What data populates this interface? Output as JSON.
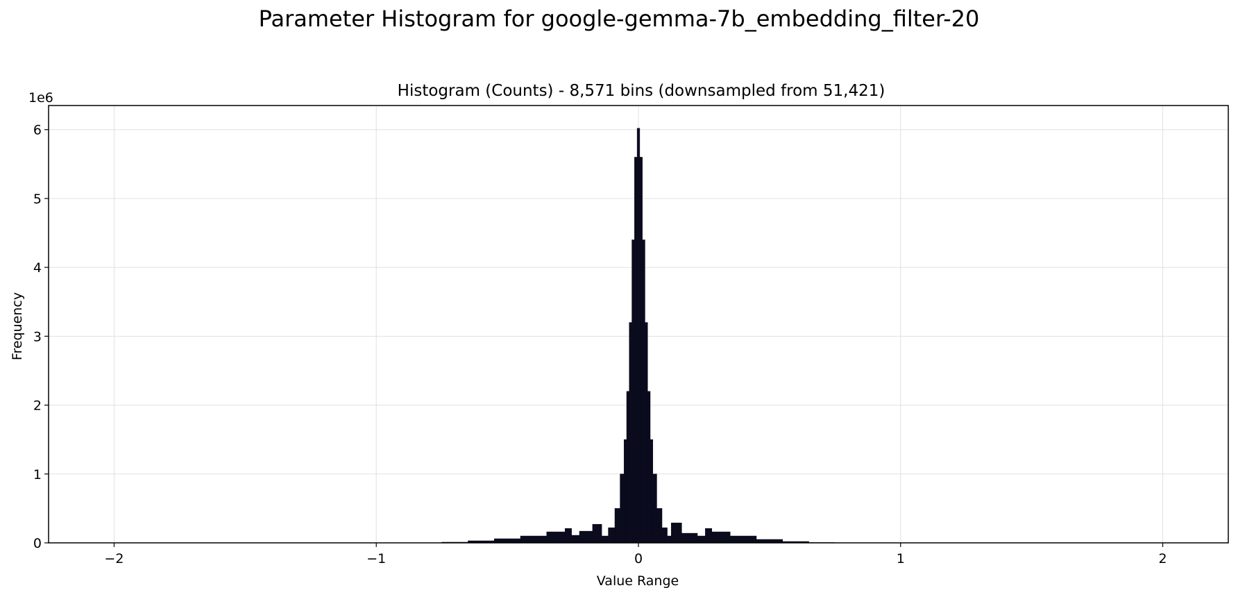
{
  "suptitle": "Parameter Histogram for google-gemma-7b_embedding_filter-20",
  "chart_data": {
    "type": "bar",
    "title": "Histogram (Counts) - 8,571 bins (downsampled from 51,421)",
    "xlabel": "Value Range",
    "ylabel": "Frequency",
    "y_offset_label": "1e6",
    "xlim": [
      -2.25,
      2.25
    ],
    "ylim": [
      0,
      6.35
    ],
    "y_scale_note": "values in millions (1e6)",
    "x_ticks": [
      -2,
      -1,
      0,
      1,
      2
    ],
    "x_tick_labels": [
      "−2",
      "−1",
      "0",
      "1",
      "2"
    ],
    "y_ticks": [
      0,
      1,
      2,
      3,
      4,
      5,
      6
    ],
    "y_tick_labels": [
      "0",
      "1",
      "2",
      "3",
      "4",
      "5",
      "6"
    ],
    "grid": true,
    "bar_color": "#0b0b1e",
    "x": [
      -0.8,
      -0.7,
      -0.6,
      -0.5,
      -0.4,
      -0.3,
      -0.26,
      -0.25,
      -0.2,
      -0.15,
      -0.13,
      -0.1,
      -0.08,
      -0.06,
      -0.05,
      -0.04,
      -0.03,
      -0.02,
      -0.01,
      0.0,
      0.01,
      0.02,
      0.03,
      0.04,
      0.05,
      0.06,
      0.08,
      0.1,
      0.12,
      0.13,
      0.2,
      0.25,
      0.26,
      0.3,
      0.4,
      0.5,
      0.6,
      0.7,
      0.8
    ],
    "y": [
      0.0,
      0.01,
      0.03,
      0.06,
      0.1,
      0.16,
      0.21,
      0.11,
      0.17,
      0.27,
      0.1,
      0.22,
      0.5,
      1.0,
      1.5,
      2.2,
      3.2,
      4.4,
      5.6,
      6.02,
      5.6,
      4.4,
      3.2,
      2.2,
      1.5,
      1.0,
      0.5,
      0.22,
      0.1,
      0.29,
      0.14,
      0.1,
      0.21,
      0.16,
      0.1,
      0.05,
      0.02,
      0.005,
      0.0
    ]
  }
}
